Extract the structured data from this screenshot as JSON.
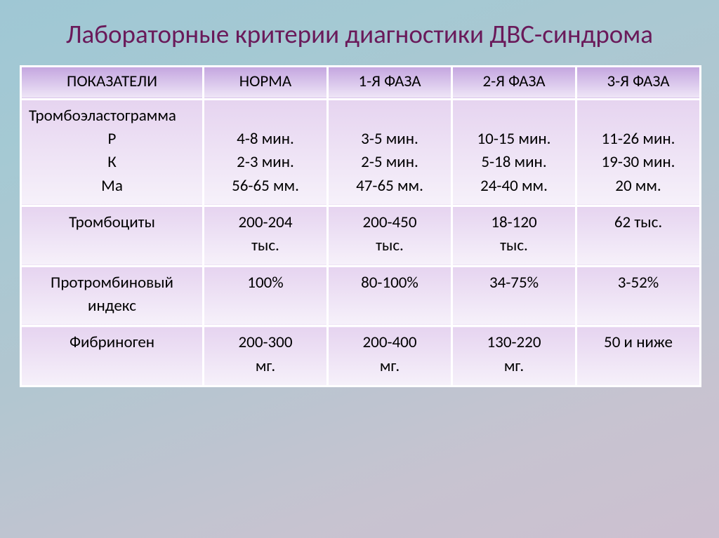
{
  "title": "Лабораторные критерии диагностики ДВС-синдрома",
  "headers": {
    "indicator": "ПОКАЗАТЕЛИ",
    "norm": "НОРМА",
    "phase1": "1-Я ФАЗА",
    "phase2": "2-Я ФАЗА",
    "phase3": "3-Я ФАЗА"
  },
  "teg": {
    "label": "Тромбоэластограмма",
    "sub_p": "Р",
    "sub_k": "К",
    "sub_ma": "Ма",
    "norm_p": "4-8 мин.",
    "norm_k": "2-3 мин.",
    "norm_ma": "56-65 мм.",
    "p1_p": "3-5 мин.",
    "p1_k": "2-5 мин.",
    "p1_ma": "47-65 мм.",
    "p2_p": "10-15 мин.",
    "p2_k": "5-18 мин.",
    "p2_ma": "24-40 мм.",
    "p3_p": "11-26 мин.",
    "p3_k": "19-30 мин.",
    "p3_ma": "20 мм."
  },
  "plt": {
    "label": "Тромбоциты",
    "norm_a": "200-204",
    "norm_b": "тыс.",
    "p1_a": "200-450",
    "p1_b": "тыс.",
    "p2_a": "18-120",
    "p2_b": "тыс.",
    "p3": "62 тыс."
  },
  "pti": {
    "label_a": "Протромбиновый",
    "label_b": "индекс",
    "norm": "100%",
    "p1": "80-100%",
    "p2": "34-75%",
    "p3": "3-52%"
  },
  "fib": {
    "label": "Фибриноген",
    "norm_a": "200-300",
    "norm_b": "мг.",
    "p1_a": "200-400",
    "p1_b": "мг.",
    "p2_a": "130-220",
    "p2_b": "мг.",
    "p3": "50 и ниже"
  },
  "colors": {
    "title": "#6a1a5a",
    "header_grad_top": "#c4a6e0",
    "header_grad_bot": "#efe6f7",
    "cell_grad_top": "#e6d4f0",
    "cell_grad_bot": "#f6f1fa",
    "border": "#ffffff",
    "bg_top": "#9fc7d4",
    "bg_bot": "#cdc0d0",
    "text": "#000000"
  },
  "fonts": {
    "title_size_pt": 28,
    "cell_size_pt": 17,
    "family": "Calibri"
  }
}
